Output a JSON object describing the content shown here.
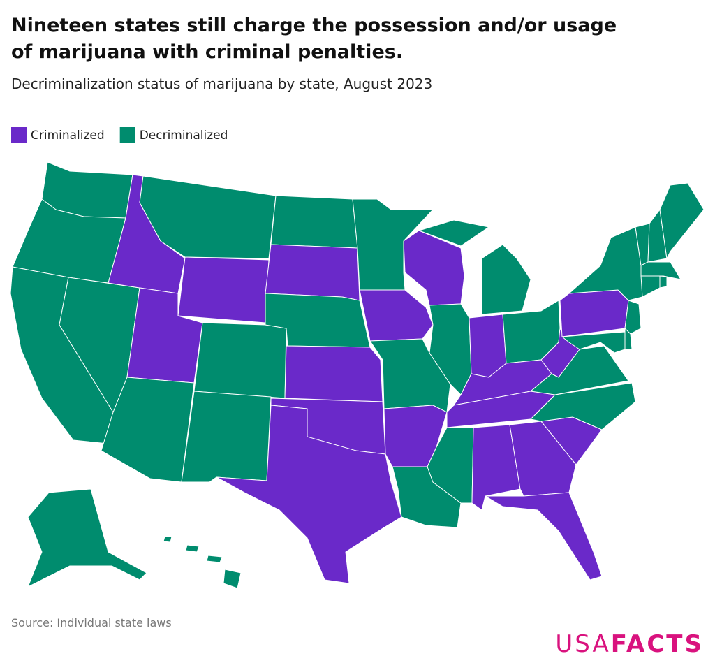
{
  "header": {
    "title": "Nineteen states still charge the possession and/or usage of marijuana with criminal penalties.",
    "subtitle": "Decriminalization status of marijuana by state, August 2023"
  },
  "legend": [
    {
      "label": "Criminalized",
      "color": "#6a29c9"
    },
    {
      "label": "Decriminalized",
      "color": "#008c6e"
    }
  ],
  "regions": {
    "WA": 1,
    "OR": 1,
    "CA": 1,
    "NV": 1,
    "ID": 0,
    "MT": 1,
    "WY": 0,
    "UT": 0,
    "AZ": 1,
    "CO": 1,
    "NM": 1,
    "ND": 1,
    "SD": 0,
    "NE": 1,
    "KS": 0,
    "OK": 0,
    "TX": 0,
    "MN": 1,
    "IA": 0,
    "MO": 1,
    "AR": 0,
    "LA": 1,
    "WI": 0,
    "IL": 1,
    "MI": 1,
    "IN": 0,
    "OH": 1,
    "KY": 0,
    "TN": 0,
    "MS": 1,
    "AL": 0,
    "GA": 0,
    "FL": 0,
    "SC": 0,
    "NC": 1,
    "VA": 1,
    "WV": 0,
    "PA": 0,
    "NY": 1,
    "VT": 1,
    "NH": 1,
    "ME": 1,
    "MA": 1,
    "CT": 1,
    "RI": 1,
    "NJ": 1,
    "DE": 1,
    "MD": 1,
    "AK": 1,
    "HI": 1
  },
  "footer": {
    "source": "Source: Individual state laws",
    "logo": [
      "USA",
      "FACTS"
    ]
  }
}
